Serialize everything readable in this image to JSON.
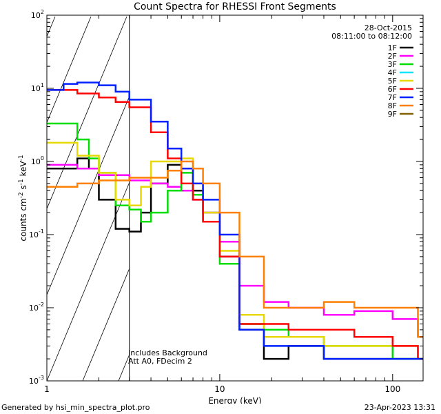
{
  "chart_data": {
    "type": "line",
    "title": "Count Spectra for RHESSI Front Segments",
    "xlabel": "Energy (keV)",
    "ylabel_parts": [
      "counts cm",
      "-2",
      " s",
      "-1",
      " keV",
      "-1"
    ],
    "x_scale": "log",
    "y_scale": "log",
    "xlim": [
      1,
      150
    ],
    "ylim": [
      0.001,
      100
    ],
    "x_ticks": [
      {
        "value": 1,
        "label": "1"
      },
      {
        "value": 10,
        "label": "10"
      },
      {
        "value": 100,
        "label": "100"
      }
    ],
    "y_ticks": [
      {
        "value": 0.001,
        "base": "10",
        "exp": "-3"
      },
      {
        "value": 0.01,
        "base": "10",
        "exp": "-2"
      },
      {
        "value": 0.1,
        "base": "10",
        "exp": "-1"
      },
      {
        "value": 1,
        "base": "10",
        "exp": "0"
      },
      {
        "value": 10,
        "base": "10",
        "exp": "1"
      },
      {
        "value": 100,
        "base": "10",
        "exp": "2"
      }
    ],
    "hatched_region": [
      1,
      3
    ],
    "info_lines": [
      "28-Oct-2015",
      "08:11:00 to 08:12:00"
    ],
    "annotations": [
      "Includes Background",
      "Att A0, FDecim 2"
    ],
    "legend_position": "top-right",
    "series": [
      {
        "name": "1F",
        "color": "#000000",
        "x": [
          1,
          1.5,
          1.75,
          2,
          2.5,
          3,
          3.5,
          4,
          5,
          6,
          7,
          8,
          10,
          13,
          18,
          25,
          40,
          60,
          100,
          140
        ],
        "y": [
          0.8,
          1.1,
          0.8,
          0.3,
          0.12,
          0.11,
          0.2,
          0.5,
          0.9,
          0.8,
          0.4,
          0.2,
          0.05,
          0.005,
          0.002,
          0.003,
          0.002,
          0.002,
          0.002,
          0.002
        ]
      },
      {
        "name": "2F",
        "color": "#ff00ff",
        "x": [
          1,
          1.5,
          2,
          3,
          4,
          5,
          6,
          7,
          8,
          10,
          13,
          18,
          25,
          40,
          60,
          100,
          140
        ],
        "y": [
          0.9,
          0.8,
          0.65,
          0.55,
          0.5,
          0.45,
          0.4,
          0.3,
          0.2,
          0.08,
          0.02,
          0.012,
          0.01,
          0.008,
          0.009,
          0.007,
          0.004
        ]
      },
      {
        "name": "3F",
        "color": "#00dd00",
        "x": [
          1,
          1.5,
          1.75,
          2,
          2.5,
          3,
          3.5,
          4,
          5,
          6,
          7,
          8,
          10,
          13,
          18,
          25,
          40,
          60,
          100,
          140
        ],
        "y": [
          3.3,
          2,
          1.1,
          0.7,
          0.25,
          0.22,
          0.15,
          0.2,
          0.4,
          0.7,
          0.35,
          0.15,
          0.04,
          0.006,
          0.005,
          0.004,
          0.003,
          0.003,
          0.002,
          0.002
        ]
      },
      {
        "name": "4F",
        "color": "#00e5ff",
        "x": [],
        "y": []
      },
      {
        "name": "5F",
        "color": "#e6d800",
        "x": [
          1,
          1.5,
          2,
          2.5,
          3,
          3.5,
          4,
          5,
          6,
          7,
          8,
          10,
          13,
          18,
          25,
          40,
          60,
          100,
          140
        ],
        "y": [
          1.8,
          1.2,
          0.7,
          0.3,
          0.25,
          0.45,
          1,
          1,
          1.1,
          0.5,
          0.2,
          0.06,
          0.008,
          0.004,
          0.004,
          0.003,
          0.003,
          0.003,
          0.002
        ]
      },
      {
        "name": "6F",
        "color": "#ff0000",
        "x": [
          1,
          1.5,
          2,
          2.5,
          3,
          4,
          5,
          6,
          7,
          8,
          10,
          13,
          18,
          25,
          40,
          60,
          100,
          140
        ],
        "y": [
          9.5,
          8.5,
          7.5,
          6.5,
          5.5,
          2.5,
          1.1,
          0.5,
          0.3,
          0.15,
          0.05,
          0.006,
          0.006,
          0.005,
          0.005,
          0.004,
          0.003,
          0.002
        ]
      },
      {
        "name": "7F",
        "color": "#0020ff",
        "x": [
          1,
          1.25,
          1.5,
          2,
          2.5,
          3,
          4,
          5,
          6,
          7,
          8,
          10,
          13,
          18,
          25,
          40,
          60,
          100,
          140
        ],
        "y": [
          9.5,
          11.5,
          12,
          11,
          9,
          7,
          3.5,
          1.5,
          0.8,
          0.5,
          0.3,
          0.1,
          0.005,
          0.003,
          0.003,
          0.002,
          0.002,
          0.002,
          0.002
        ]
      },
      {
        "name": "8F",
        "color": "#ff8000",
        "x": [
          1,
          1.5,
          2,
          3,
          4,
          5,
          6,
          7,
          8,
          10,
          13,
          18,
          25,
          40,
          60,
          100,
          140
        ],
        "y": [
          0.45,
          0.5,
          0.55,
          0.6,
          0.6,
          0.75,
          1,
          0.8,
          0.5,
          0.2,
          0.05,
          0.01,
          0.01,
          0.012,
          0.01,
          0.01,
          0.004
        ]
      },
      {
        "name": "9F",
        "color": "#806000",
        "x": [],
        "y": []
      }
    ]
  },
  "footer": {
    "generated": "Generated by hsi_min_spectra_plot.pro",
    "date": "23-Apr-2023 13:31"
  }
}
